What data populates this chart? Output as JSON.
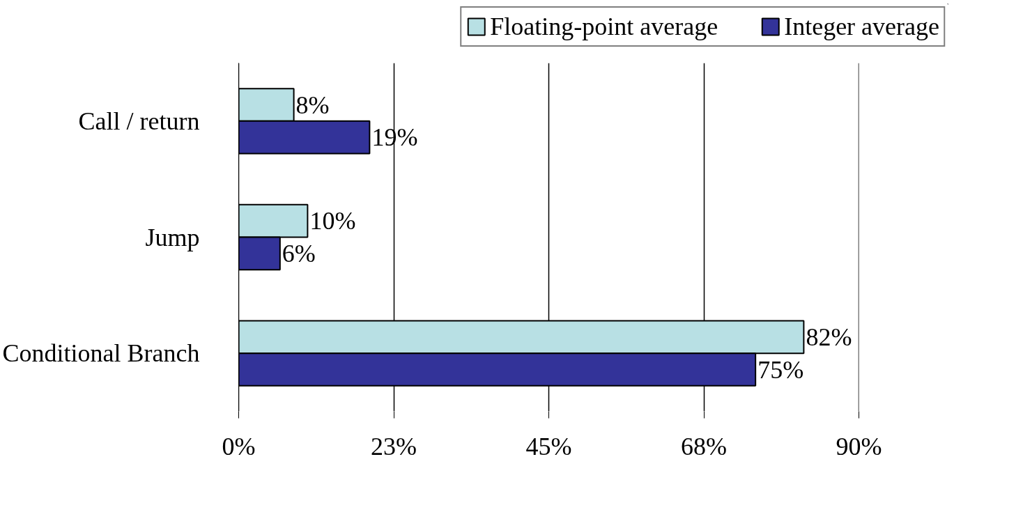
{
  "chart_data": {
    "type": "bar",
    "orientation": "horizontal",
    "categories": [
      "Call / return",
      "Jump",
      "Conditional Branch"
    ],
    "series": [
      {
        "name": "Floating-point average",
        "color": "#b8e0e4",
        "values": [
          8,
          10,
          82
        ],
        "value_labels": [
          "8%",
          "10%",
          "82%"
        ]
      },
      {
        "name": "Integer average",
        "color": "#333399",
        "values": [
          19,
          6,
          75
        ],
        "value_labels": [
          "19%",
          "6%",
          "75%"
        ]
      }
    ],
    "xlim": [
      0,
      90
    ],
    "xticks": [
      {
        "value": 0,
        "label": "0%"
      },
      {
        "value": 22.5,
        "label": "23%"
      },
      {
        "value": 45,
        "label": "45%"
      },
      {
        "value": 67.5,
        "label": "68%"
      },
      {
        "value": 90,
        "label": "90%"
      }
    ],
    "grid": "x",
    "legend": "top"
  }
}
